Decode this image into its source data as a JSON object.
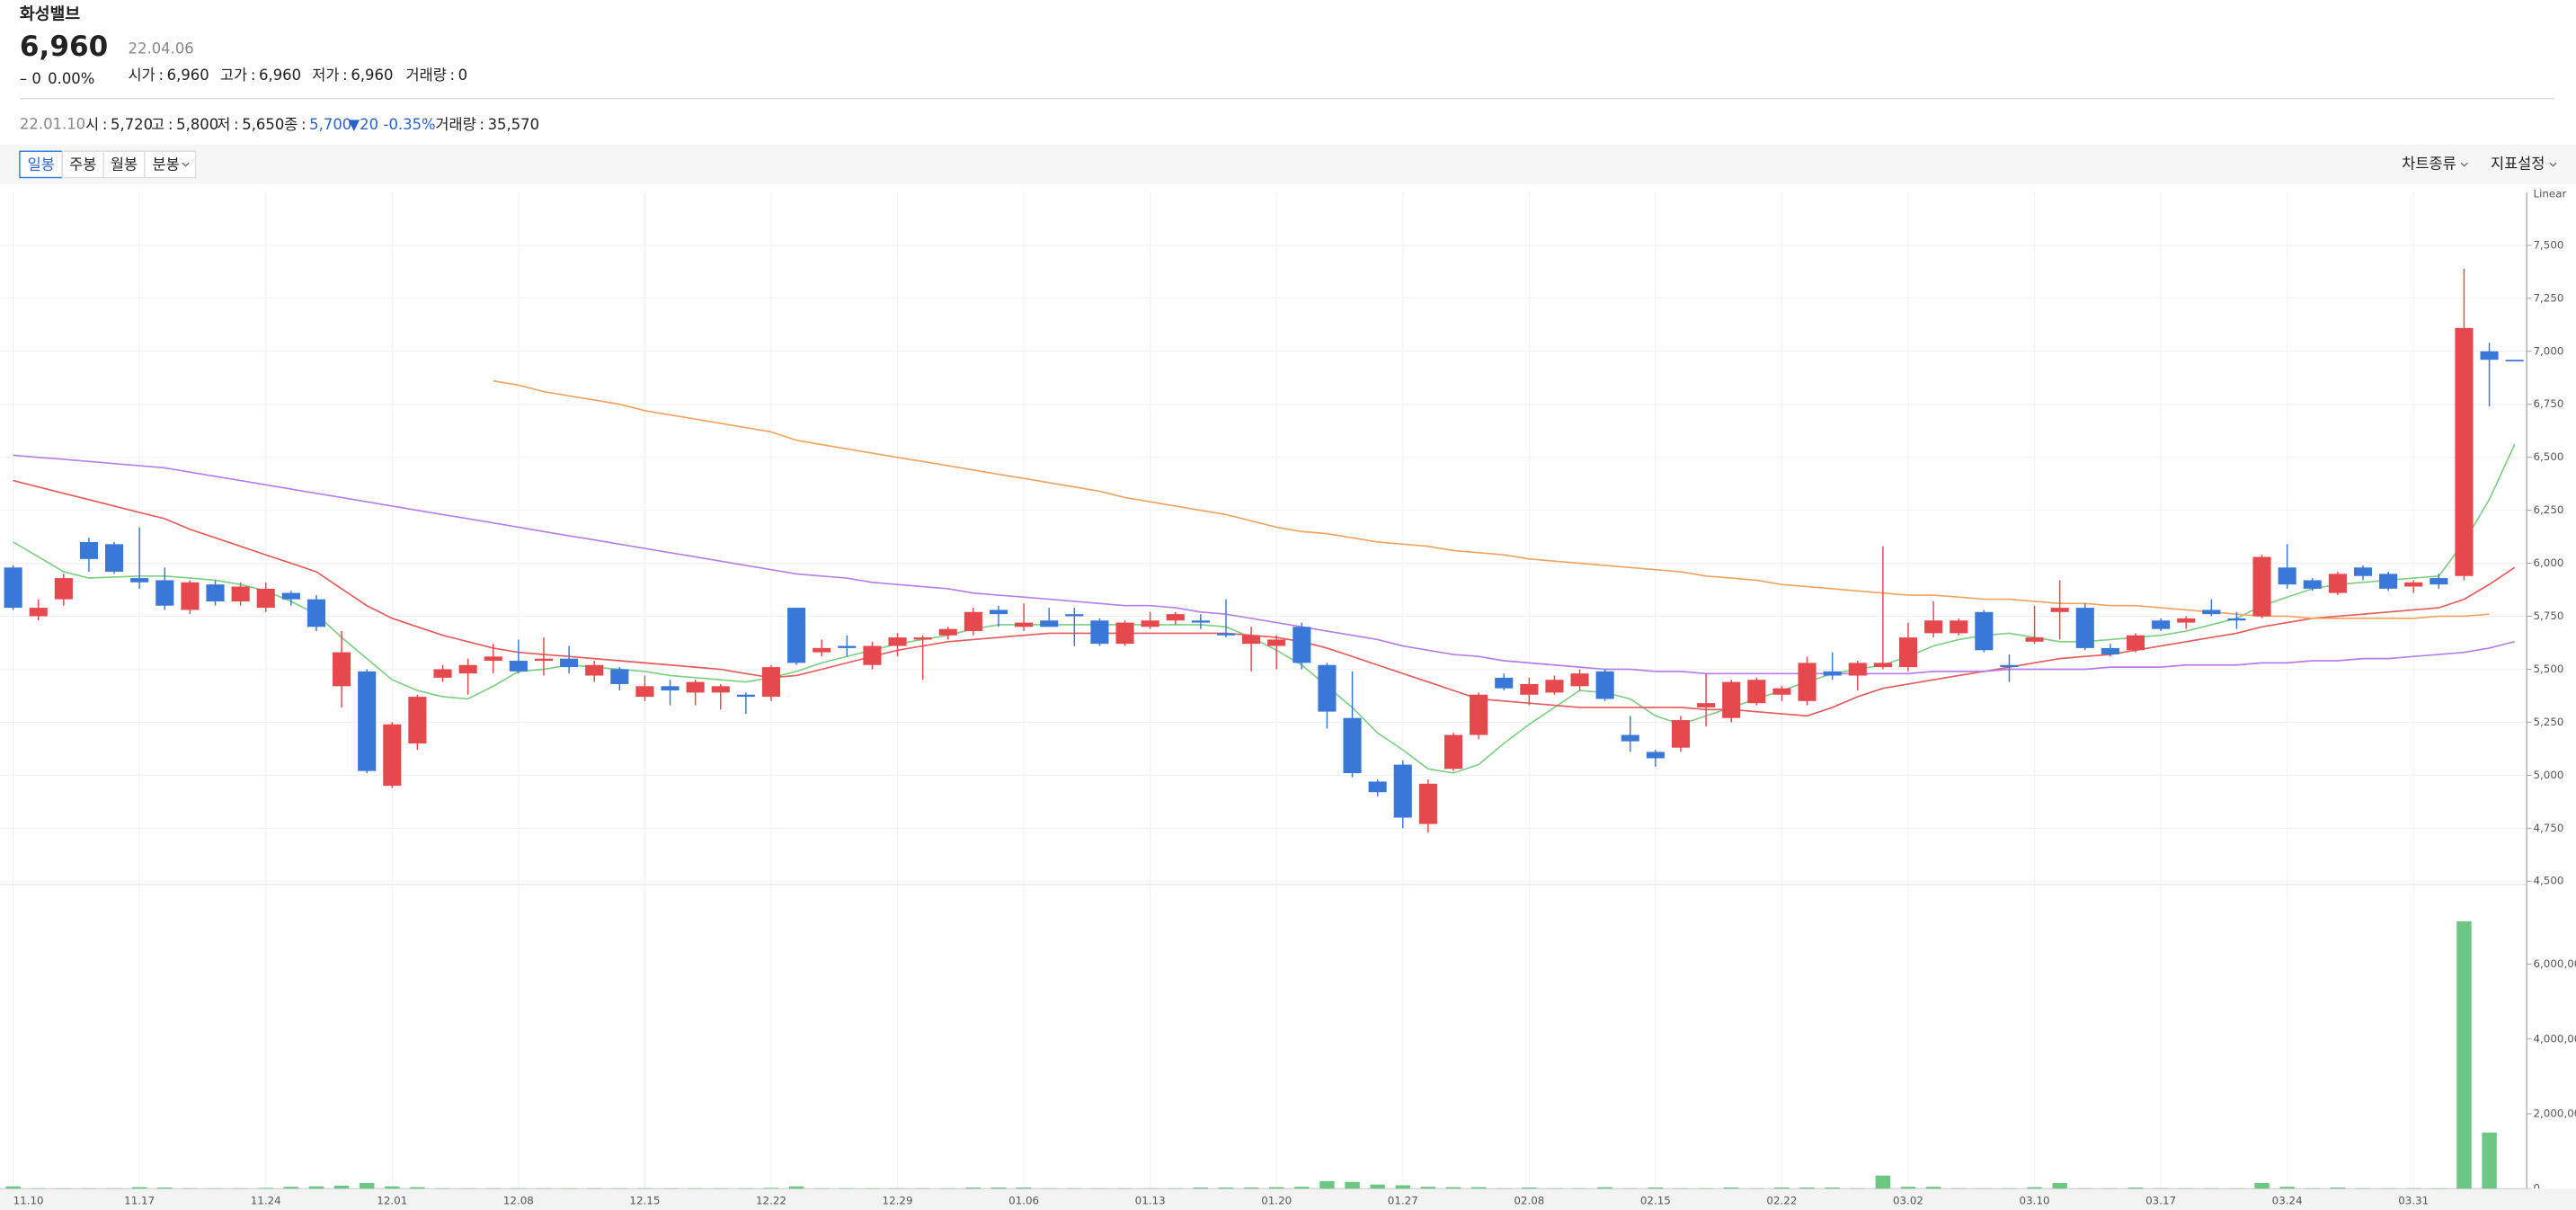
{
  "header": {
    "name": "화성밸브",
    "price": "6,960",
    "change": "– 0",
    "change_pct": "0.00%",
    "date": "22.04.06",
    "separator": ":",
    "quote": [
      {
        "label": "시가",
        "value": "6,960"
      },
      {
        "label": "고가",
        "value": "6,960"
      },
      {
        "label": "저가",
        "value": "6,960"
      },
      {
        "label": "거래량",
        "value": "0"
      }
    ]
  },
  "info": {
    "date": "22.01.10",
    "items": [
      {
        "label": "시",
        "value": "5,720"
      },
      {
        "label": "고",
        "value": "5,800"
      },
      {
        "label": "저",
        "value": "5,650"
      },
      {
        "label": "종",
        "value": "5,700"
      }
    ],
    "change": "▼20",
    "change_pct": "-0.35%",
    "volume": {
      "label": "거래량",
      "value": "35,570"
    }
  },
  "toolbar": {
    "periods": [
      "일봉",
      "주봉",
      "월봉",
      "분봉"
    ],
    "selected": 0,
    "menus": [
      "차트종류",
      "지표설정"
    ]
  },
  "chart_data": {
    "type": "candlestick",
    "scale_label": "Linear",
    "up_color": "#e5484d",
    "down_color": "#3a78d8",
    "grid": true,
    "categories": [
      "11.10",
      null,
      null,
      null,
      null,
      "11.17",
      null,
      null,
      null,
      null,
      "11.24",
      null,
      null,
      null,
      null,
      "12.01",
      null,
      null,
      null,
      null,
      "12.08",
      null,
      null,
      null,
      null,
      "12.15",
      null,
      null,
      null,
      null,
      "12.22",
      null,
      null,
      null,
      null,
      "12.29",
      null,
      null,
      null,
      null,
      "01.06",
      null,
      null,
      null,
      null,
      "01.13",
      null,
      null,
      null,
      null,
      "01.20",
      null,
      null,
      null,
      null,
      "01.27",
      null,
      null,
      null,
      null,
      "02.08",
      null,
      null,
      null,
      null,
      "02.15",
      null,
      null,
      null,
      null,
      "02.22",
      null,
      null,
      null,
      null,
      "03.02",
      null,
      null,
      null,
      null,
      "03.10",
      null,
      null,
      null,
      null,
      "03.17",
      null,
      null,
      null,
      null,
      "03.24",
      null,
      null,
      null,
      null,
      "03.31",
      null,
      null,
      null,
      null
    ],
    "open": [
      5980,
      5750,
      5830,
      6100,
      6090,
      5930,
      5920,
      5780,
      5900,
      5820,
      5790,
      5860,
      5830,
      5420,
      5490,
      4950,
      5150,
      5460,
      5480,
      5540,
      5540,
      5540,
      5550,
      5470,
      5500,
      5370,
      5420,
      5390,
      5390,
      5380,
      5370,
      5790,
      5580,
      5610,
      5520,
      5610,
      5640,
      5660,
      5680,
      5780,
      5700,
      5730,
      5760,
      5730,
      5620,
      5700,
      5730,
      5730,
      5670,
      5620,
      5610,
      5700,
      5520,
      5270,
      4970,
      5050,
      4770,
      5030,
      5190,
      5460,
      5380,
      5390,
      5420,
      5490,
      5190,
      5110,
      5130,
      5320,
      5270,
      5340,
      5380,
      5350,
      5490,
      5470,
      5510,
      5510,
      5670,
      5670,
      5770,
      5520,
      5630,
      5770,
      5790,
      5600,
      5590,
      5730,
      5720,
      5780,
      5740,
      5750,
      5980,
      5920,
      5860,
      5980,
      5950,
      5890,
      5930,
      5940,
      7000,
      6960
    ],
    "high": [
      5990,
      5830,
      5950,
      6120,
      6100,
      6170,
      5980,
      5920,
      5920,
      5910,
      5910,
      5870,
      5850,
      5680,
      5500,
      5250,
      5380,
      5520,
      5550,
      5620,
      5640,
      5650,
      5610,
      5540,
      5510,
      5470,
      5450,
      5450,
      5430,
      5390,
      5520,
      5790,
      5640,
      5660,
      5630,
      5670,
      5660,
      5700,
      5790,
      5800,
      5810,
      5790,
      5790,
      5740,
      5730,
      5770,
      5770,
      5760,
      5830,
      5700,
      5660,
      5720,
      5530,
      5490,
      4980,
      5070,
      4980,
      5200,
      5390,
      5480,
      5460,
      5470,
      5500,
      5500,
      5280,
      5120,
      5280,
      5480,
      5450,
      5460,
      5420,
      5560,
      5580,
      5540,
      6080,
      5720,
      5820,
      5740,
      5780,
      5570,
      5800,
      5920,
      5810,
      5620,
      5670,
      5740,
      5750,
      5830,
      5770,
      6040,
      6090,
      5930,
      5960,
      5990,
      5960,
      5920,
      5950,
      7390,
      7040,
      6960
    ],
    "low": [
      5780,
      5730,
      5800,
      5960,
      5950,
      5880,
      5780,
      5760,
      5800,
      5800,
      5770,
      5800,
      5680,
      5320,
      5010,
      4940,
      5120,
      5440,
      5380,
      5480,
      5480,
      5470,
      5480,
      5440,
      5400,
      5350,
      5330,
      5330,
      5310,
      5290,
      5350,
      5520,
      5560,
      5560,
      5500,
      5560,
      5450,
      5640,
      5660,
      5700,
      5680,
      5700,
      5610,
      5610,
      5610,
      5690,
      5710,
      5690,
      5650,
      5490,
      5500,
      5500,
      5220,
      4990,
      4900,
      4750,
      4730,
      5020,
      5170,
      5400,
      5330,
      5380,
      5400,
      5350,
      5110,
      5040,
      5110,
      5230,
      5250,
      5330,
      5350,
      5330,
      5450,
      5400,
      5500,
      5490,
      5650,
      5660,
      5580,
      5440,
      5620,
      5640,
      5590,
      5560,
      5580,
      5680,
      5690,
      5750,
      5690,
      5740,
      5880,
      5870,
      5850,
      5920,
      5870,
      5860,
      5880,
      5920,
      6740,
      6960
    ],
    "close": [
      5790,
      5790,
      5930,
      6020,
      5960,
      5910,
      5800,
      5910,
      5820,
      5890,
      5880,
      5830,
      5700,
      5580,
      5020,
      5240,
      5370,
      5500,
      5520,
      5560,
      5490,
      5550,
      5510,
      5520,
      5430,
      5420,
      5400,
      5440,
      5420,
      5370,
      5510,
      5530,
      5600,
      5600,
      5610,
      5650,
      5650,
      5690,
      5770,
      5760,
      5720,
      5700,
      5750,
      5620,
      5720,
      5730,
      5760,
      5720,
      5660,
      5660,
      5640,
      5530,
      5300,
      5010,
      4920,
      4800,
      4960,
      5190,
      5380,
      5410,
      5430,
      5450,
      5480,
      5360,
      5160,
      5080,
      5260,
      5340,
      5440,
      5450,
      5410,
      5530,
      5470,
      5530,
      5530,
      5650,
      5730,
      5730,
      5590,
      5510,
      5650,
      5790,
      5600,
      5570,
      5660,
      5690,
      5740,
      5760,
      5730,
      6030,
      5900,
      5880,
      5950,
      5940,
      5880,
      5910,
      5900,
      7110,
      6960,
      6960
    ],
    "ylim": [
      4500,
      7750
    ],
    "yticks": [
      {
        "value": 4500,
        "label": "4,500"
      },
      {
        "value": 4750,
        "label": "4,750"
      },
      {
        "value": 5000,
        "label": "5,000"
      },
      {
        "value": 5250,
        "label": "5,250"
      },
      {
        "value": 5500,
        "label": "5,500"
      },
      {
        "value": 5750,
        "label": "5,750"
      },
      {
        "value": 6000,
        "label": "6,000"
      },
      {
        "value": 6250,
        "label": "6,250"
      },
      {
        "value": 6500,
        "label": "6,500"
      },
      {
        "value": 6750,
        "label": "6,750"
      },
      {
        "value": 7000,
        "label": "7,000"
      },
      {
        "value": 7250,
        "label": "7,250"
      },
      {
        "value": 7500,
        "label": "7,500"
      }
    ],
    "moving_averages": [
      {
        "color": "#7ccf83",
        "values": [
          6100,
          6030,
          5960,
          5930,
          5935,
          5940,
          5940,
          5930,
          5920,
          5900,
          5870,
          5820,
          5760,
          5650,
          5550,
          5450,
          5400,
          5370,
          5360,
          5420,
          5490,
          5500,
          5520,
          5510,
          5500,
          5490,
          5470,
          5460,
          5450,
          5440,
          5460,
          5490,
          5530,
          5560,
          5590,
          5620,
          5640,
          5660,
          5690,
          5710,
          5710,
          5710,
          5710,
          5710,
          5710,
          5710,
          5710,
          5710,
          5700,
          5650,
          5590,
          5520,
          5420,
          5320,
          5200,
          5120,
          5030,
          5010,
          5050,
          5150,
          5240,
          5320,
          5400,
          5390,
          5360,
          5280,
          5240,
          5280,
          5320,
          5360,
          5400,
          5440,
          5480,
          5500,
          5520,
          5560,
          5610,
          5640,
          5660,
          5670,
          5650,
          5630,
          5630,
          5640,
          5650,
          5660,
          5680,
          5710,
          5740,
          5800,
          5840,
          5880,
          5900,
          5910,
          5920,
          5930,
          5940,
          6100,
          6300,
          6560
        ]
      },
      {
        "color": "#e55a5a",
        "values": [
          6390,
          6360,
          6330,
          6300,
          6270,
          6240,
          6210,
          6160,
          6120,
          6080,
          6040,
          6000,
          5960,
          5880,
          5800,
          5740,
          5700,
          5660,
          5630,
          5600,
          5580,
          5570,
          5560,
          5550,
          5540,
          5530,
          5520,
          5510,
          5500,
          5480,
          5460,
          5470,
          5500,
          5530,
          5560,
          5590,
          5610,
          5630,
          5640,
          5650,
          5660,
          5670,
          5670,
          5670,
          5670,
          5670,
          5670,
          5670,
          5670,
          5660,
          5650,
          5630,
          5600,
          5560,
          5520,
          5480,
          5440,
          5400,
          5360,
          5350,
          5340,
          5330,
          5320,
          5320,
          5320,
          5320,
          5320,
          5310,
          5310,
          5300,
          5290,
          5280,
          5320,
          5370,
          5410,
          5430,
          5450,
          5470,
          5490,
          5510,
          5530,
          5550,
          5560,
          5570,
          5590,
          5610,
          5630,
          5650,
          5670,
          5700,
          5720,
          5740,
          5750,
          5760,
          5770,
          5780,
          5790,
          5830,
          5900,
          5980
        ]
      },
      {
        "color": "#b57ee8",
        "values": [
          6510,
          6500,
          6490,
          6480,
          6470,
          6460,
          6450,
          6430,
          6410,
          6390,
          6370,
          6350,
          6330,
          6310,
          6290,
          6270,
          6250,
          6230,
          6210,
          6190,
          6170,
          6150,
          6130,
          6110,
          6090,
          6070,
          6050,
          6030,
          6010,
          5990,
          5970,
          5950,
          5940,
          5930,
          5910,
          5900,
          5890,
          5880,
          5860,
          5850,
          5840,
          5830,
          5820,
          5810,
          5800,
          5800,
          5790,
          5770,
          5760,
          5740,
          5720,
          5700,
          5680,
          5660,
          5640,
          5610,
          5590,
          5570,
          5560,
          5540,
          5530,
          5520,
          5510,
          5500,
          5500,
          5490,
          5490,
          5480,
          5480,
          5480,
          5480,
          5480,
          5480,
          5480,
          5480,
          5480,
          5490,
          5490,
          5490,
          5500,
          5500,
          5500,
          5500,
          5510,
          5510,
          5510,
          5520,
          5520,
          5520,
          5530,
          5530,
          5540,
          5540,
          5550,
          5550,
          5560,
          5570,
          5580,
          5600,
          5630
        ]
      },
      {
        "color": "#f0a35e",
        "values": [
          null,
          null,
          null,
          null,
          null,
          null,
          null,
          null,
          null,
          null,
          null,
          null,
          null,
          null,
          null,
          null,
          null,
          null,
          null,
          6860,
          6840,
          6810,
          6790,
          6770,
          6750,
          6720,
          6700,
          6680,
          6660,
          6640,
          6620,
          6580,
          6560,
          6540,
          6520,
          6500,
          6480,
          6460,
          6440,
          6420,
          6400,
          6380,
          6360,
          6340,
          6310,
          6290,
          6270,
          6250,
          6230,
          6200,
          6170,
          6150,
          6140,
          6120,
          6100,
          6090,
          6080,
          6060,
          6050,
          6040,
          6020,
          6010,
          6000,
          5990,
          5980,
          5970,
          5960,
          5940,
          5930,
          5920,
          5900,
          5890,
          5880,
          5870,
          5860,
          5850,
          5850,
          5840,
          5830,
          5830,
          5820,
          5810,
          5810,
          5800,
          5800,
          5790,
          5780,
          5770,
          5760,
          5750,
          5750,
          5740,
          5740,
          5740,
          5740,
          5740,
          5750,
          5750,
          5760
        ]
      }
    ],
    "volume": {
      "color": "#6cc785",
      "ylim": [
        0,
        8000000
      ],
      "yticks": [
        0,
        {
          "value": 2000000,
          "label": "2,000,000"
        },
        {
          "value": 4000000,
          "label": "4,000,000"
        },
        {
          "value": 6000000,
          "label": "6,000,000"
        }
      ],
      "values": [
        60000,
        10000,
        10000,
        10000,
        10000,
        40000,
        30000,
        10000,
        10000,
        10000,
        20000,
        50000,
        60000,
        80000,
        150000,
        60000,
        40000,
        10000,
        10000,
        10000,
        10000,
        10000,
        10000,
        10000,
        10000,
        10000,
        10000,
        10000,
        10000,
        10000,
        20000,
        60000,
        10000,
        10000,
        10000,
        10000,
        10000,
        10000,
        30000,
        30000,
        30000,
        10000,
        10000,
        10000,
        10000,
        10000,
        10000,
        30000,
        30000,
        30000,
        40000,
        50000,
        200000,
        180000,
        110000,
        90000,
        50000,
        40000,
        40000,
        10000,
        30000,
        10000,
        10000,
        40000,
        10000,
        30000,
        10000,
        10000,
        30000,
        10000,
        30000,
        30000,
        30000,
        10000,
        350000,
        50000,
        50000,
        10000,
        10000,
        10000,
        40000,
        150000,
        10000,
        10000,
        30000,
        10000,
        10000,
        10000,
        10000,
        150000,
        50000,
        10000,
        30000,
        10000,
        10000,
        10000,
        10000,
        7150000,
        1500000,
        0
      ]
    }
  }
}
